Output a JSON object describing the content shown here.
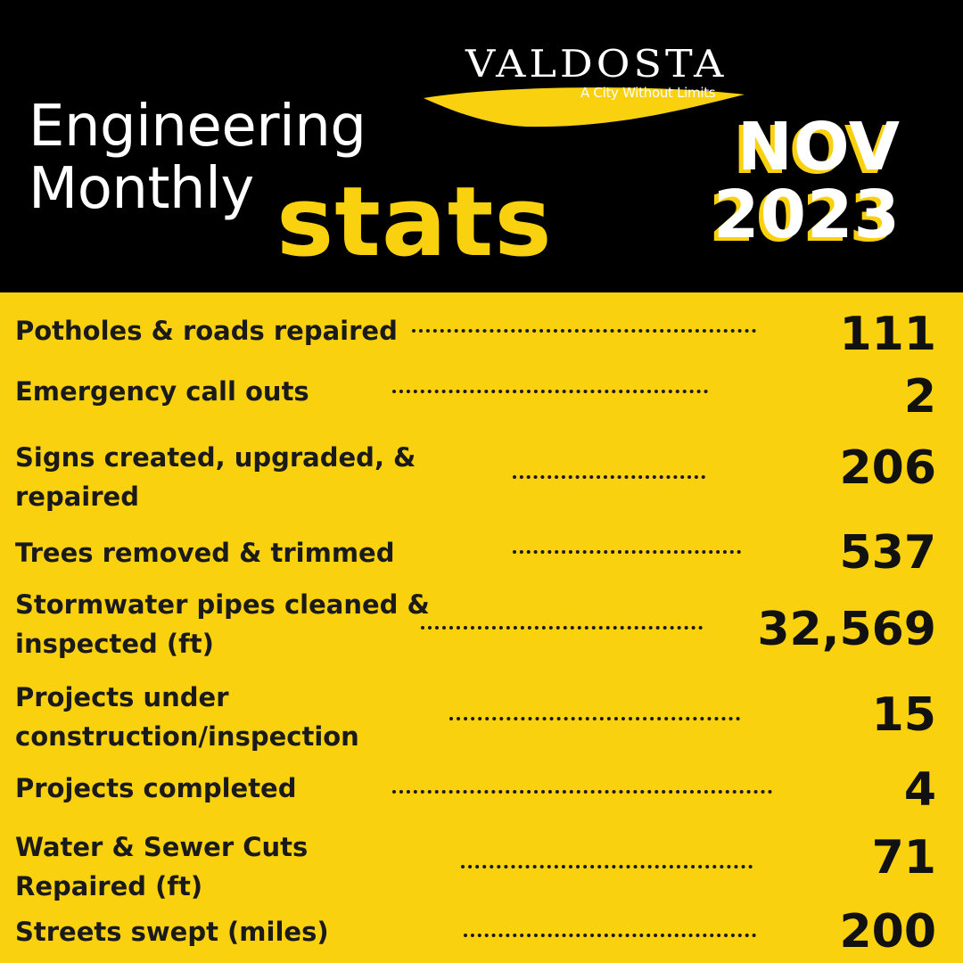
{
  "brand": {
    "name": "VALDOSTA",
    "tagline": "A City Without Limits"
  },
  "header": {
    "title_line1": "Engineering",
    "title_line2": "Monthly",
    "title_accent": "stats",
    "month": "NOV",
    "year": "2023"
  },
  "colors": {
    "accent_yellow": "#f9d10e",
    "header_black": "#000000",
    "text_dark": "#1a1a1a"
  },
  "stats": [
    {
      "label": [
        "Potholes & roads repaired"
      ],
      "value": "111"
    },
    {
      "label": [
        "Emergency call outs"
      ],
      "value": "2"
    },
    {
      "label": [
        "Signs created, upgraded, &",
        "repaired"
      ],
      "value": "206"
    },
    {
      "label": [
        "Trees removed &  trimmed"
      ],
      "value": "537"
    },
    {
      "label": [
        "Stormwater pipes cleaned &",
        "inspected (ft)"
      ],
      "value": "32,569"
    },
    {
      "label": [
        "Projects under",
        "construction/inspection"
      ],
      "value": "15"
    },
    {
      "label": [
        "Projects completed"
      ],
      "value": "4"
    },
    {
      "label": [
        "Water & Sewer Cuts",
        "Repaired (ft)"
      ],
      "value": "71"
    },
    {
      "label": [
        "Streets swept (miles)"
      ],
      "value": "200"
    }
  ]
}
